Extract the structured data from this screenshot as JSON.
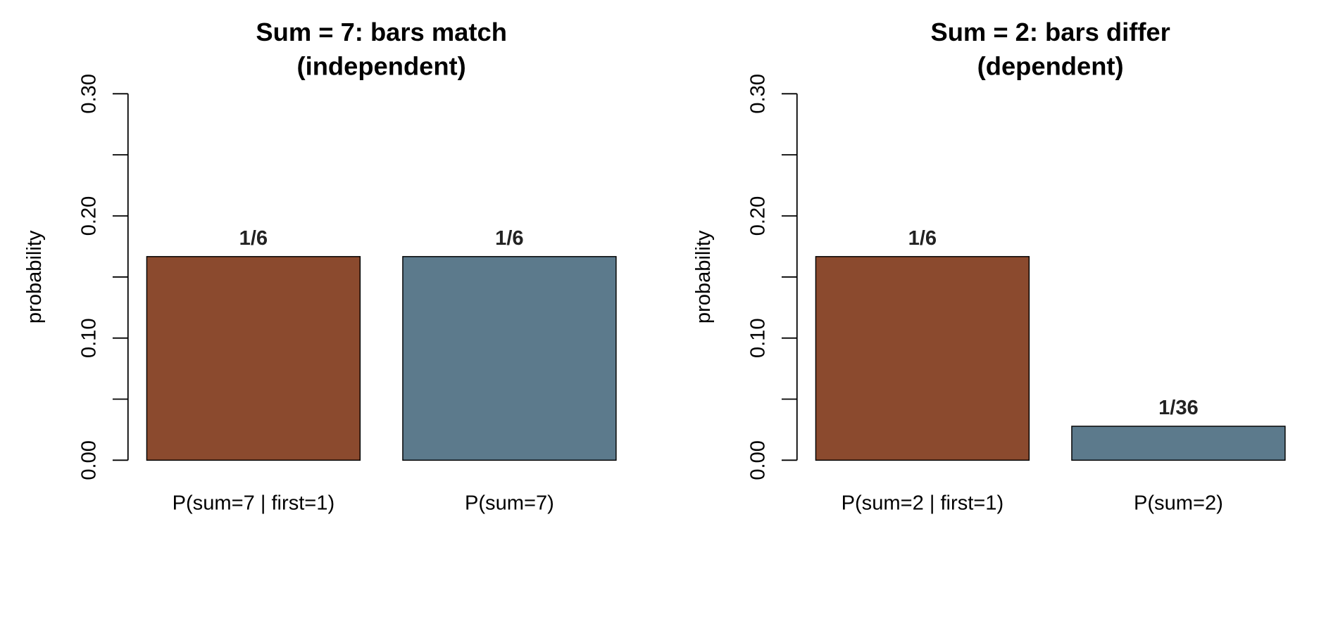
{
  "chart_data": [
    {
      "type": "bar",
      "title": [
        "Sum = 7: bars match",
        "(independent)"
      ],
      "xlabel": "",
      "ylabel": "probability",
      "ylim": [
        0,
        0.3
      ],
      "yticks": [
        "0.00",
        "0.10",
        "0.20",
        "0.30"
      ],
      "yticks_minor": [
        0.05,
        0.15,
        0.25
      ],
      "categories": [
        "P(sum=7 | first=1)",
        "P(sum=7)"
      ],
      "values": [
        0.1667,
        0.1667
      ],
      "data_labels": [
        "1/6",
        "1/6"
      ],
      "colors": [
        "#8B4A2E",
        "#5C7A8C"
      ],
      "grid": false,
      "legend": "none"
    },
    {
      "type": "bar",
      "title": [
        "Sum = 2: bars differ",
        "(dependent)"
      ],
      "xlabel": "",
      "ylabel": "probability",
      "ylim": [
        0,
        0.3
      ],
      "yticks": [
        "0.00",
        "0.10",
        "0.20",
        "0.30"
      ],
      "yticks_minor": [
        0.05,
        0.15,
        0.25
      ],
      "categories": [
        "P(sum=2 | first=1)",
        "P(sum=2)"
      ],
      "values": [
        0.1667,
        0.0278
      ],
      "data_labels": [
        "1/6",
        "1/36"
      ],
      "colors": [
        "#8B4A2E",
        "#5C7A8C"
      ],
      "grid": false,
      "legend": "none"
    }
  ]
}
